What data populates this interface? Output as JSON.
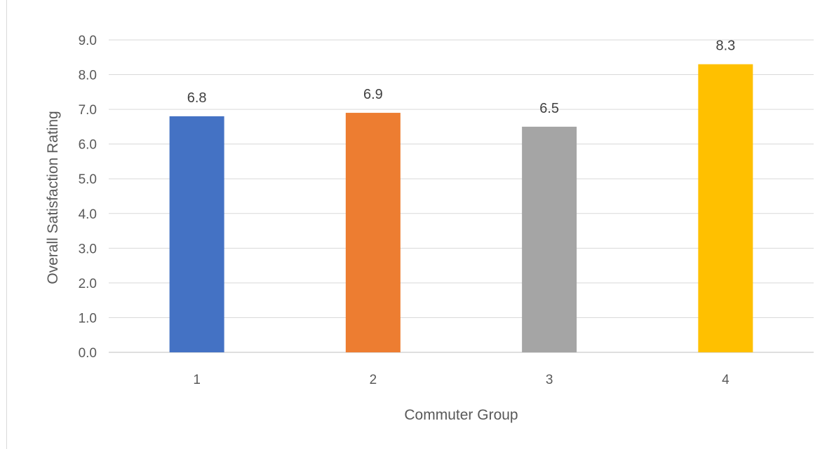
{
  "chart_data": {
    "type": "bar",
    "title": "",
    "xlabel": "Commuter Group",
    "ylabel": "Overall Satisfaction Rating",
    "categories": [
      "1",
      "2",
      "3",
      "4"
    ],
    "values": [
      6.8,
      6.9,
      6.5,
      8.3
    ],
    "value_labels": [
      "6.8",
      "6.9",
      "6.5",
      "8.3"
    ],
    "bar_colors": [
      "#4472C4",
      "#ED7D31",
      "#A5A5A5",
      "#FFC000"
    ],
    "ylim": [
      0,
      9
    ],
    "yticks": [
      "0.0",
      "1.0",
      "2.0",
      "3.0",
      "4.0",
      "5.0",
      "6.0",
      "7.0",
      "8.0",
      "9.0"
    ],
    "grid": true,
    "legend": "none"
  }
}
